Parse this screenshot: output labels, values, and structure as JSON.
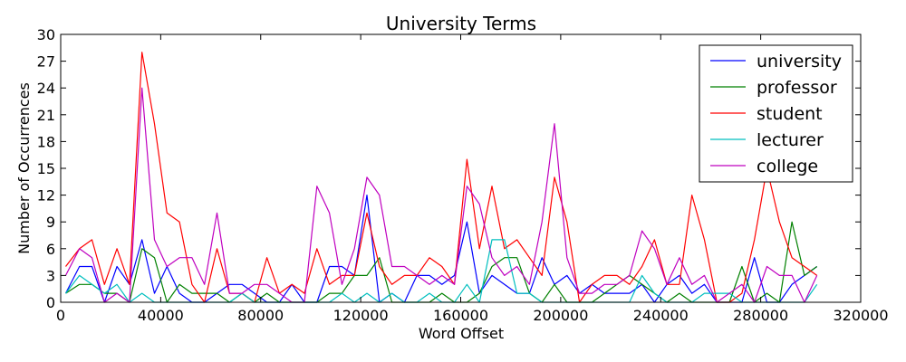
{
  "chart_data": {
    "type": "line",
    "title": "University Terms",
    "xlabel": "Word Offset",
    "ylabel": "Number of Occurrences",
    "xlim": [
      0,
      320000
    ],
    "ylim": [
      0,
      30
    ],
    "xticks": [
      0,
      40000,
      80000,
      120000,
      160000,
      200000,
      240000,
      280000,
      320000
    ],
    "yticks": [
      0,
      3,
      6,
      9,
      12,
      15,
      18,
      21,
      24,
      27,
      30
    ],
    "grid": false,
    "legend_position": "top-right",
    "x": [
      2000,
      7500,
      12500,
      17500,
      22500,
      27500,
      32500,
      37500,
      42500,
      47500,
      52500,
      57500,
      62500,
      67500,
      72500,
      77500,
      82500,
      87500,
      92500,
      97500,
      102500,
      107500,
      112500,
      117500,
      122500,
      127500,
      132500,
      137500,
      142500,
      147500,
      152500,
      157500,
      162500,
      167500,
      172500,
      177500,
      182500,
      187500,
      192500,
      197500,
      202500,
      207500,
      212500,
      217500,
      222500,
      227500,
      232500,
      237500,
      242500,
      247500,
      252500,
      257500,
      262500,
      267500,
      272500,
      277500,
      282500,
      287500,
      292500,
      297500,
      302500
    ],
    "series": [
      {
        "name": "university",
        "color": "#0000ff",
        "values": [
          1,
          4,
          4,
          0,
          4,
          2,
          7,
          1,
          4,
          1,
          0,
          0,
          1,
          2,
          2,
          1,
          0,
          0,
          2,
          0,
          0,
          4,
          4,
          3,
          12,
          0,
          1,
          0,
          3,
          3,
          2,
          3,
          9,
          1,
          3,
          2,
          1,
          1,
          5,
          2,
          3,
          1,
          2,
          1,
          1,
          1,
          2,
          0,
          2,
          3,
          1,
          2,
          0,
          0,
          0,
          5,
          0,
          0,
          2,
          3,
          4
        ]
      },
      {
        "name": "professor",
        "color": "#008000",
        "values": [
          1,
          2,
          2,
          1,
          1,
          0,
          6,
          5,
          0,
          2,
          1,
          1,
          1,
          0,
          1,
          0,
          1,
          0,
          0,
          0,
          0,
          1,
          1,
          3,
          3,
          5,
          0,
          0,
          0,
          0,
          1,
          0,
          0,
          1,
          4,
          5,
          5,
          1,
          0,
          2,
          0,
          0,
          0,
          1,
          2,
          3,
          2,
          1,
          0,
          1,
          0,
          0,
          0,
          0,
          4,
          0,
          1,
          0,
          9,
          3,
          4
        ]
      },
      {
        "name": "student",
        "color": "#ff0000",
        "values": [
          4,
          6,
          7,
          2,
          6,
          2,
          28,
          20,
          10,
          9,
          2,
          0,
          6,
          1,
          1,
          0,
          5,
          1,
          2,
          1,
          6,
          2,
          3,
          3,
          10,
          4,
          2,
          3,
          3,
          5,
          4,
          2,
          16,
          6,
          13,
          6,
          7,
          5,
          3,
          14,
          9,
          0,
          2,
          3,
          3,
          2,
          4,
          7,
          2,
          2,
          12,
          7,
          0,
          0,
          1,
          7,
          15,
          9,
          5,
          4,
          3
        ]
      },
      {
        "name": "lecturer",
        "color": "#00bfbf",
        "values": [
          1,
          3,
          2,
          1,
          2,
          0,
          1,
          0,
          0,
          0,
          0,
          0,
          0,
          0,
          1,
          0,
          0,
          0,
          0,
          0,
          0,
          0,
          1,
          0,
          1,
          0,
          1,
          0,
          0,
          1,
          0,
          0,
          2,
          0,
          7,
          7,
          1,
          1,
          0,
          0,
          0,
          0,
          0,
          0,
          0,
          0,
          3,
          1,
          0,
          0,
          0,
          1,
          1,
          1,
          0,
          0,
          0,
          0,
          0,
          0,
          2
        ]
      },
      {
        "name": "college",
        "color": "#bf00bf",
        "values": [
          3,
          6,
          5,
          0,
          1,
          0,
          24,
          7,
          4,
          5,
          5,
          2,
          10,
          1,
          1,
          2,
          2,
          1,
          0,
          0,
          13,
          10,
          2,
          6,
          14,
          12,
          4,
          4,
          3,
          2,
          3,
          2,
          13,
          11,
          5,
          3,
          4,
          2,
          9,
          20,
          5,
          1,
          1,
          2,
          2,
          3,
          8,
          6,
          2,
          5,
          2,
          3,
          0,
          1,
          2,
          0,
          4,
          3,
          3,
          0,
          3
        ]
      }
    ]
  }
}
